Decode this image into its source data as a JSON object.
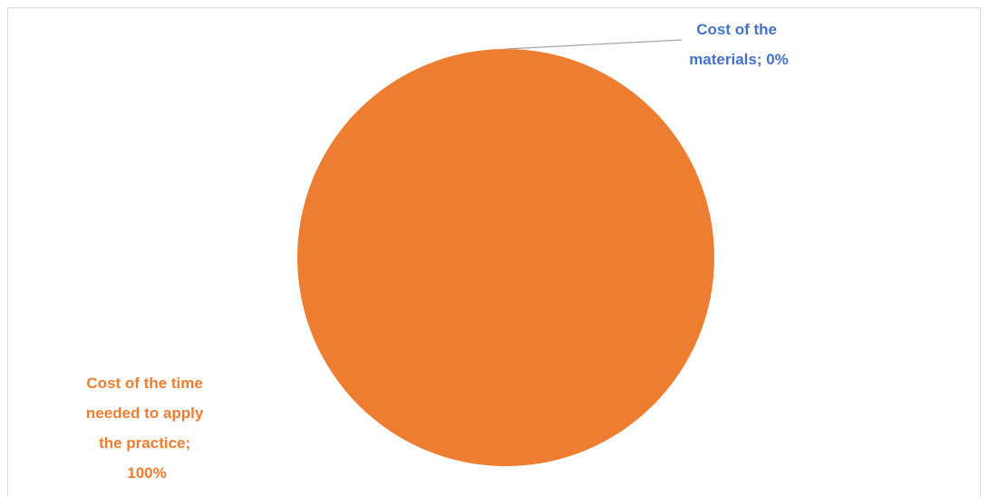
{
  "chart_data": {
    "type": "pie",
    "title": "",
    "slices": [
      {
        "label_lines": [
          "Cost of the",
          "materials; 0%"
        ],
        "category": "Cost of the materials",
        "value": 0,
        "percent_label": "0%",
        "color": "#4472C4"
      },
      {
        "label_lines": [
          "Cost of the time",
          "needed to apply",
          "the practice;",
          "100%"
        ],
        "category": "Cost of the time needed to apply the practice",
        "value": 100,
        "percent_label": "100%",
        "color": "#ED7D31"
      }
    ],
    "legend": "none",
    "leader_line_color": "#A5A5A5"
  }
}
